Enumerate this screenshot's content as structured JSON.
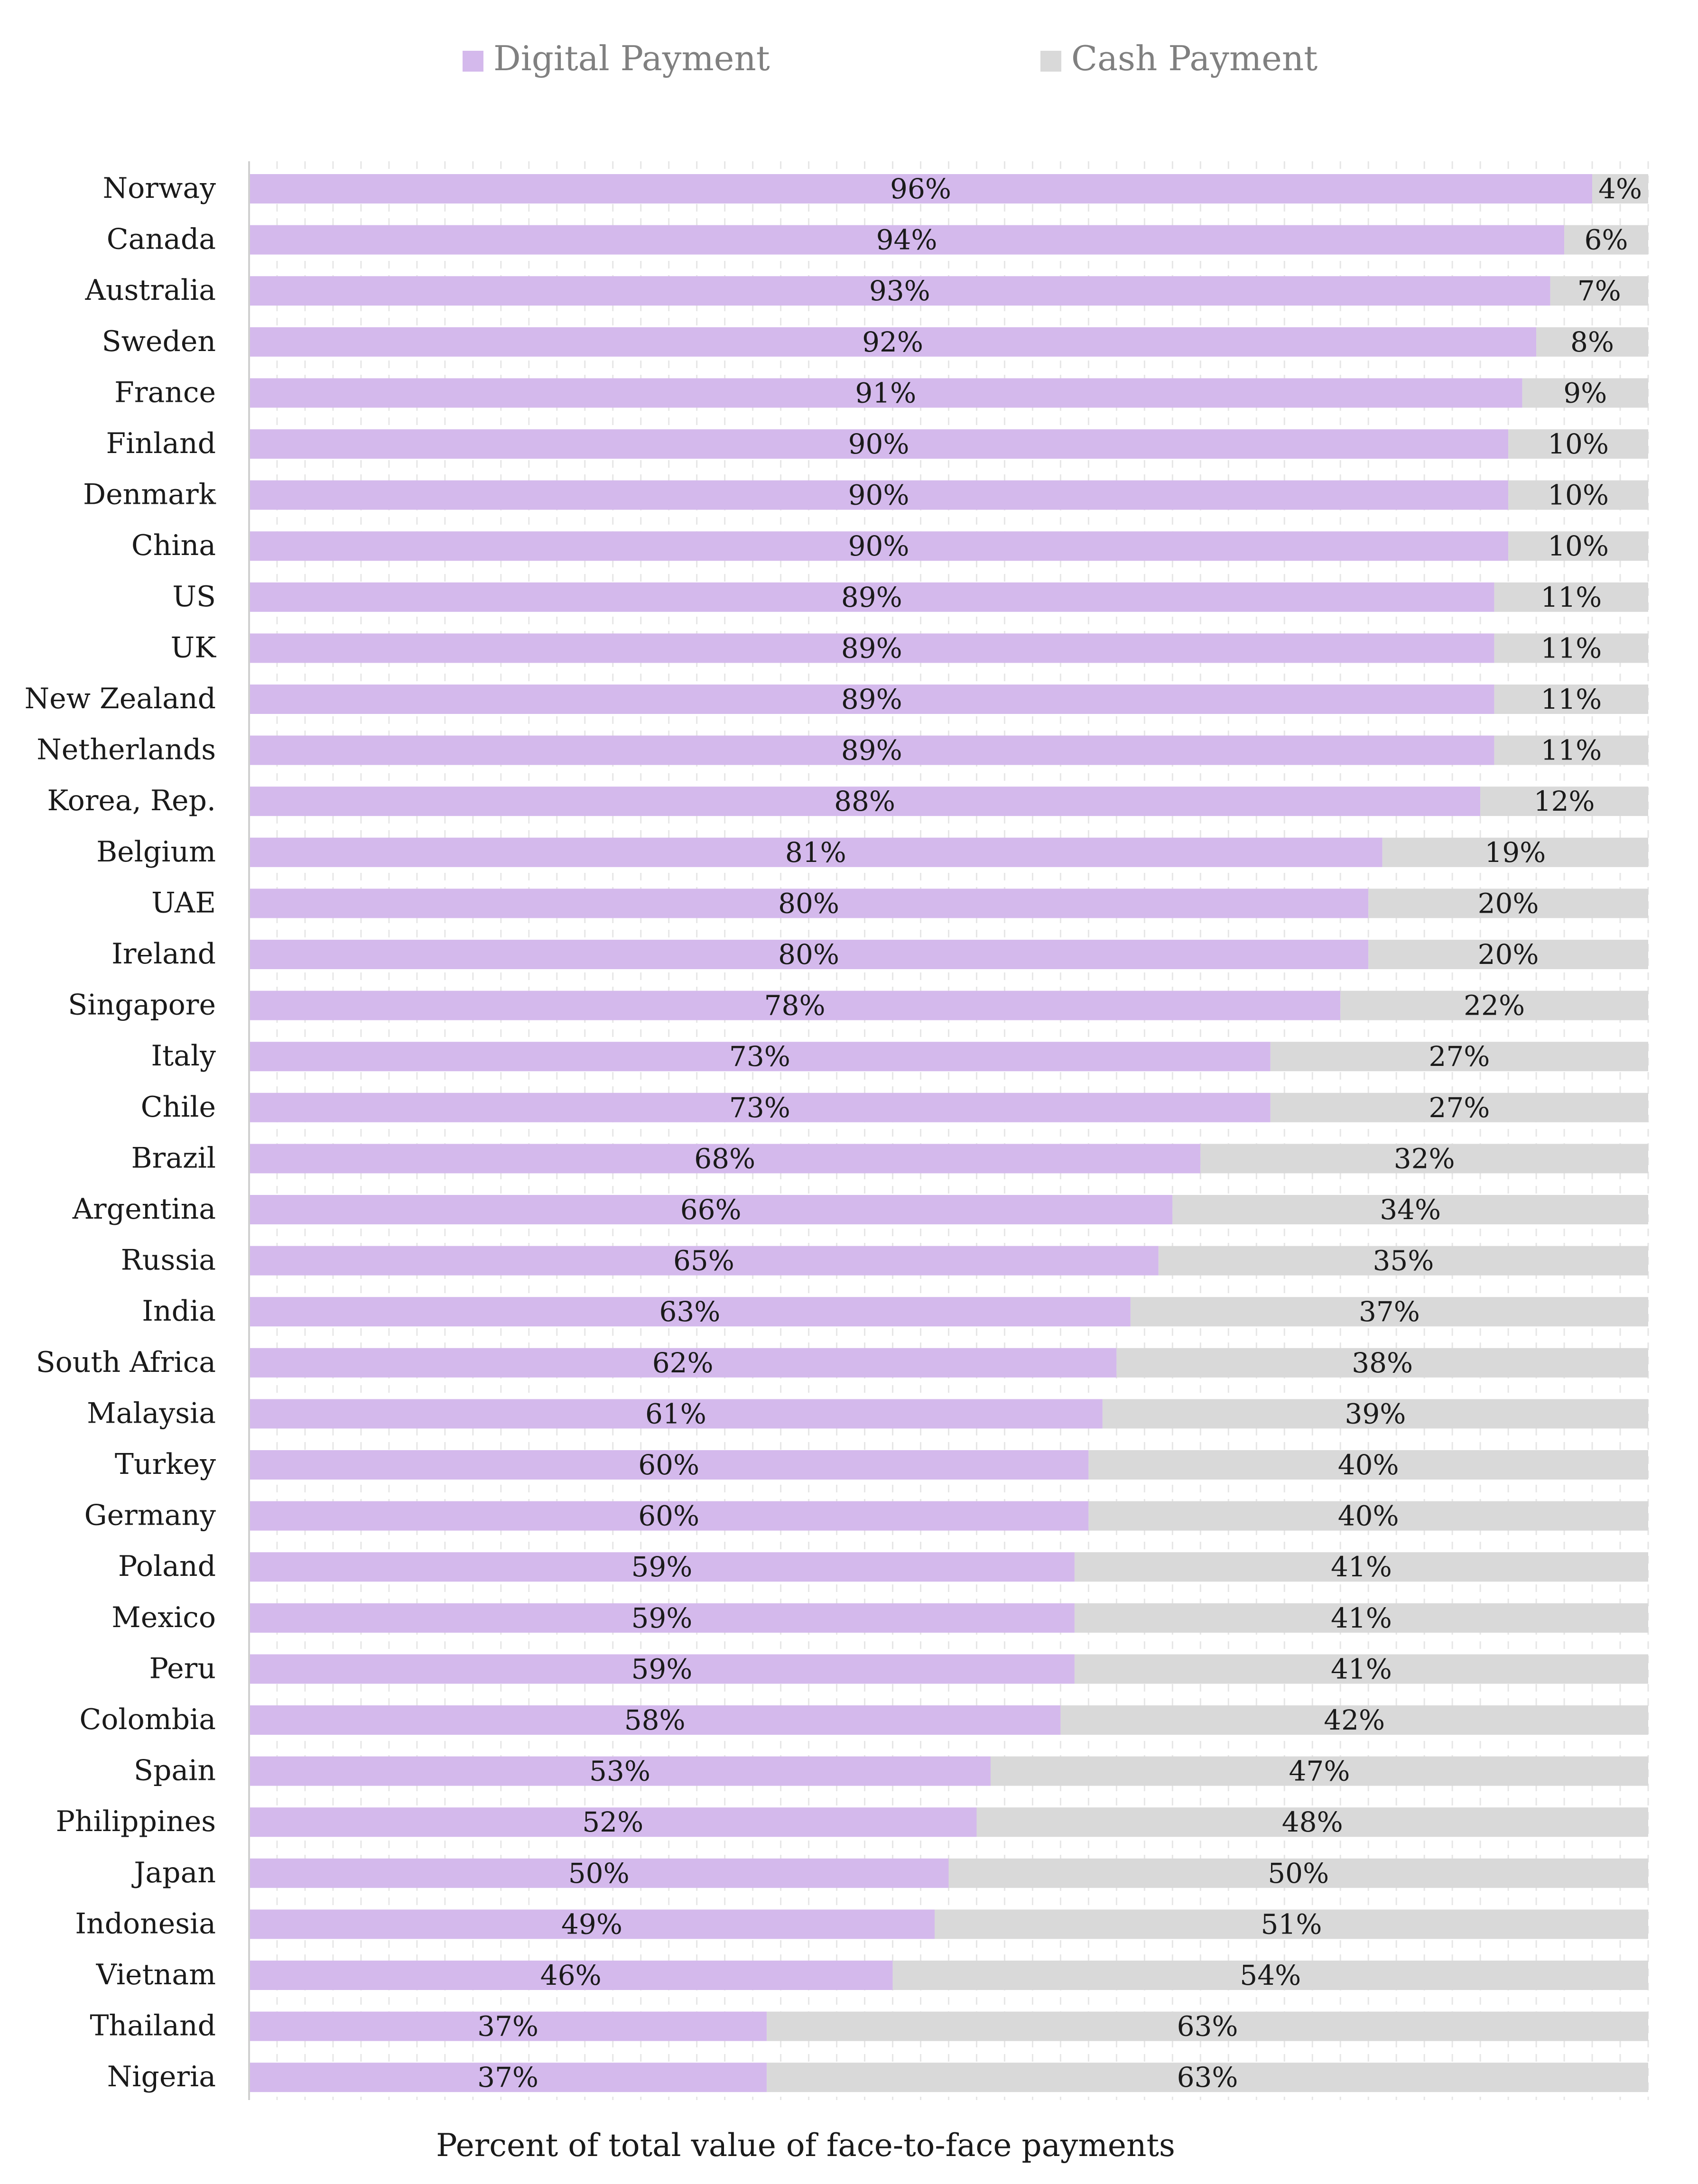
{
  "chart_data": {
    "type": "bar",
    "orientation": "horizontal",
    "stacked": true,
    "categories": [
      "Norway",
      "Canada",
      "Australia",
      "Sweden",
      "France",
      "Finland",
      "Denmark",
      "China",
      "US",
      "UK",
      "New Zealand",
      "Netherlands",
      "Korea, Rep.",
      "Belgium",
      "UAE",
      "Ireland",
      "Singapore",
      "Italy",
      "Chile",
      "Brazil",
      "Argentina",
      "Russia",
      "India",
      "South Africa",
      "Malaysia",
      "Turkey",
      "Germany",
      "Poland",
      "Mexico",
      "Peru",
      "Colombia",
      "Spain",
      "Philippines",
      "Japan",
      "Indonesia",
      "Vietnam",
      "Thailand",
      "Nigeria"
    ],
    "series": [
      {
        "name": "Digital Payment",
        "color": "#d4b9ec",
        "values": [
          96,
          94,
          93,
          92,
          91,
          90,
          90,
          90,
          89,
          89,
          89,
          89,
          88,
          81,
          80,
          80,
          78,
          73,
          73,
          68,
          66,
          65,
          63,
          62,
          61,
          60,
          60,
          59,
          59,
          59,
          58,
          53,
          52,
          50,
          49,
          46,
          37,
          37
        ]
      },
      {
        "name": "Cash Payment",
        "color": "#d9d9d9",
        "values": [
          4,
          6,
          7,
          8,
          9,
          10,
          10,
          10,
          11,
          11,
          11,
          11,
          12,
          19,
          20,
          20,
          22,
          27,
          27,
          32,
          34,
          35,
          37,
          38,
          39,
          40,
          40,
          41,
          41,
          41,
          42,
          47,
          48,
          50,
          51,
          54,
          63,
          63
        ]
      }
    ],
    "value_suffix": "%",
    "title": "",
    "xlabel": "Percent of total value of face-to-face payments",
    "ylabel": "",
    "xlim": [
      0,
      100
    ],
    "grid": true,
    "legend_position": "top"
  }
}
